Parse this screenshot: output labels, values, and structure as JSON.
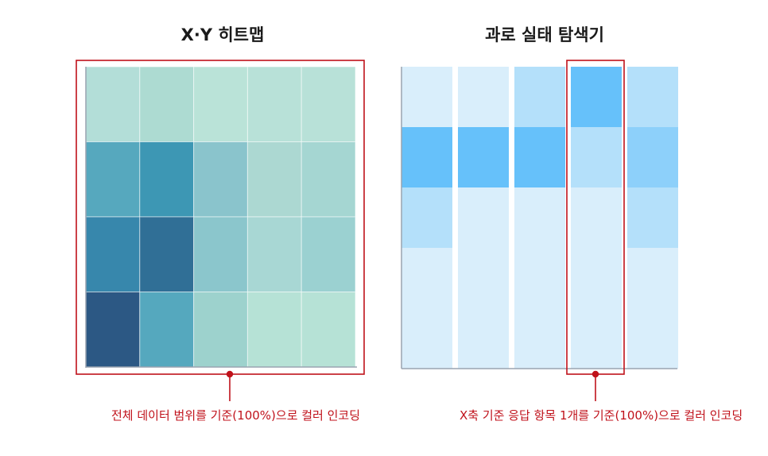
{
  "left_panel": {
    "title": "X·Y 히트맵",
    "caption": "전체 데이터 범위를 기준(100%)으로 컬러 인코딩",
    "grid": [
      [
        "#b3ded8",
        "#addbd2",
        "#bae3d8",
        "#b8e1d8",
        "#b8e1d8"
      ],
      [
        "#56a8be",
        "#3d97b4",
        "#8ac4cc",
        "#acd8d2",
        "#a5d6d2"
      ],
      [
        "#3787ac",
        "#306f96",
        "#8bc6cc",
        "#a8d7d4",
        "#9bd1d1"
      ],
      [
        "#2c5884",
        "#55a8be",
        "#9dd2cd",
        "#b6e2d6",
        "#b6e2d6"
      ]
    ]
  },
  "right_panel": {
    "title": "과로 실태 탐색기",
    "caption": "X축 기준 응답 항목 1개를 기준(100%)으로 컬러 인코딩",
    "columns": [
      [
        "#d9eefb",
        "#66c1fa",
        "#b4e0fa",
        "#d9eefb",
        "#d9eefb"
      ],
      [
        "#d9eefb",
        "#66c1fa",
        "#d9eefb",
        "#d9eefb",
        "#d9eefb"
      ],
      [
        "#b4e0fa",
        "#66c1fa",
        "#d9eefb",
        "#d9eefb",
        "#d9eefb"
      ],
      [
        "#66c1fa",
        "#b4e0fa",
        "#d9eefb",
        "#d9eefb",
        "#d9eefb"
      ],
      [
        "#b4e0fa",
        "#8dd0fa",
        "#b4e0fa",
        "#d9eefb",
        "#d9eefb"
      ]
    ]
  },
  "colors": {
    "highlight": "#c0121b",
    "axis": "#9aa4b0"
  }
}
